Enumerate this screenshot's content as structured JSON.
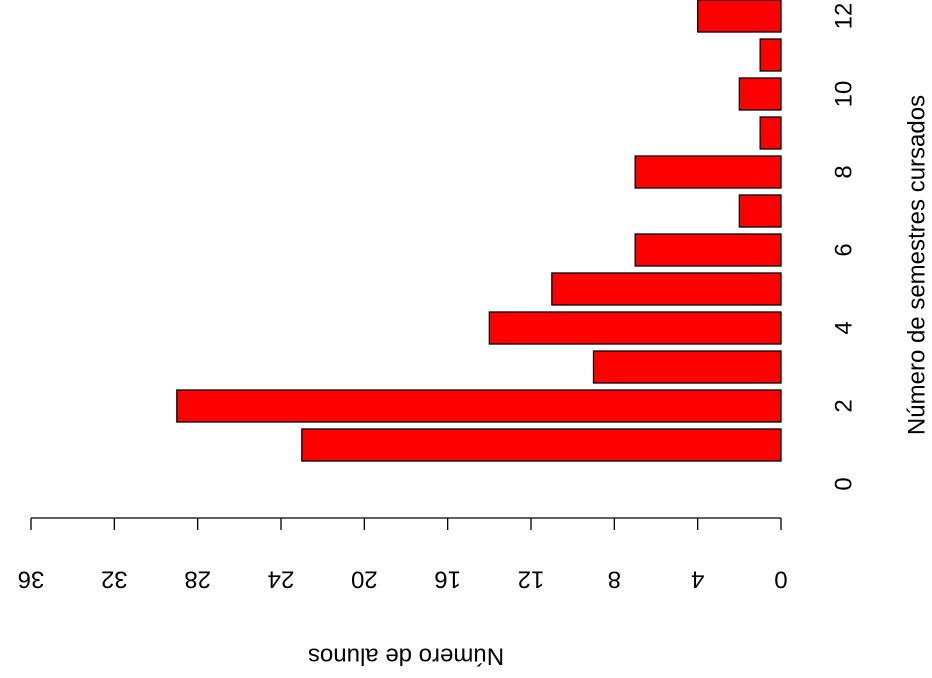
{
  "chart_data": {
    "type": "bar",
    "orientation": "horizontal",
    "x_label": "Número de alunos",
    "y_label": "Número de semestres cursados",
    "categories": [
      "0",
      null,
      "2",
      null,
      "4",
      null,
      "6",
      null,
      "8",
      null,
      "10",
      null,
      "12"
    ],
    "values": [
      0,
      23,
      29,
      9,
      14,
      11,
      7,
      2,
      7,
      1,
      2,
      1,
      4
    ],
    "color": "#ff0000",
    "xlim": [
      0,
      36
    ],
    "xticks": [
      0,
      4,
      8,
      12,
      16,
      20,
      24,
      28,
      32,
      36
    ]
  }
}
